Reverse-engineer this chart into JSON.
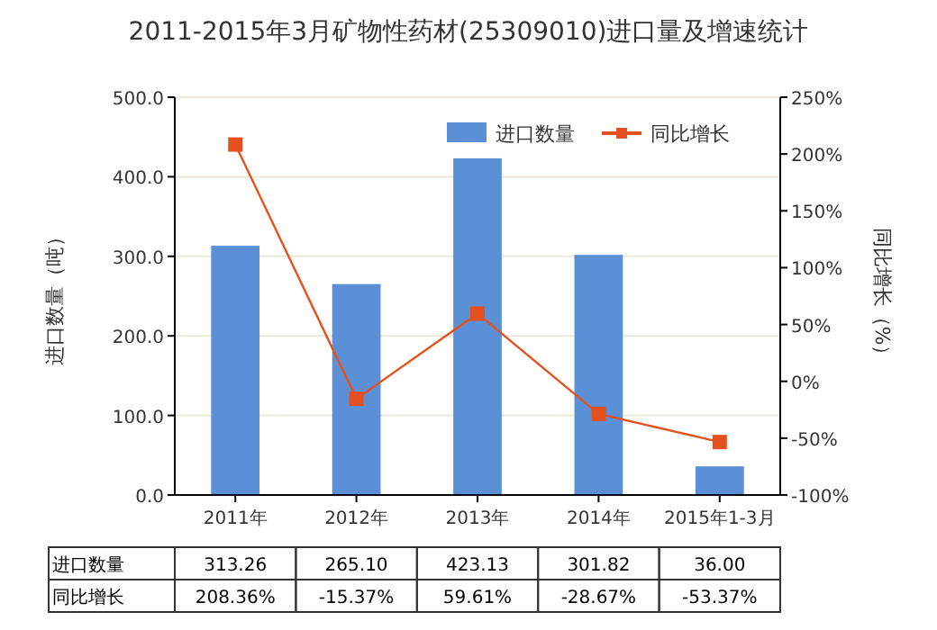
{
  "chart_data": {
    "type": "bar",
    "title": "2011-2015年3月矿物性药材(25309010)进口量及增速统计",
    "ylabel": "进口数量（吨）",
    "y2label": "同比增长（%）",
    "categories": [
      "2011年",
      "2012年",
      "2013年",
      "2014年",
      "2015年1-3月"
    ],
    "series": [
      {
        "name": "进口数量",
        "color": "#5b8fd6",
        "values": [
          313.26,
          265.1,
          423.13,
          301.82,
          36.0
        ],
        "value_labels": [
          "313.26",
          "265.10",
          "423.13",
          "301.82",
          "36.00"
        ]
      },
      {
        "name": "同比增长",
        "type": "line",
        "axis": "y2",
        "color": "#e4511e",
        "marker": "square",
        "values": [
          208.36,
          -15.37,
          59.61,
          -28.67,
          -53.37
        ],
        "value_labels": [
          "208.36%",
          "-15.37%",
          "59.61%",
          "-28.67%",
          "-53.37%"
        ]
      }
    ],
    "ylim": [
      0,
      500
    ],
    "yticks": [
      {
        "value": 0,
        "label": "0.0"
      },
      {
        "value": 100,
        "label": "100.0"
      },
      {
        "value": 200,
        "label": "200.0"
      },
      {
        "value": 300,
        "label": "300.0"
      },
      {
        "value": 400,
        "label": "400.0"
      },
      {
        "value": 500,
        "label": "500.0"
      }
    ],
    "y2lim": [
      -100,
      250
    ],
    "y2ticks": [
      {
        "value": -100,
        "label": "-100%"
      },
      {
        "value": -50,
        "label": "-50%"
      },
      {
        "value": 0,
        "label": "0%"
      },
      {
        "value": 50,
        "label": "50%"
      },
      {
        "value": 100,
        "label": "100%"
      },
      {
        "value": 150,
        "label": "150%"
      },
      {
        "value": 200,
        "label": "200%"
      },
      {
        "value": 250,
        "label": "250%"
      }
    ],
    "grid": "y",
    "legend": "top right"
  }
}
